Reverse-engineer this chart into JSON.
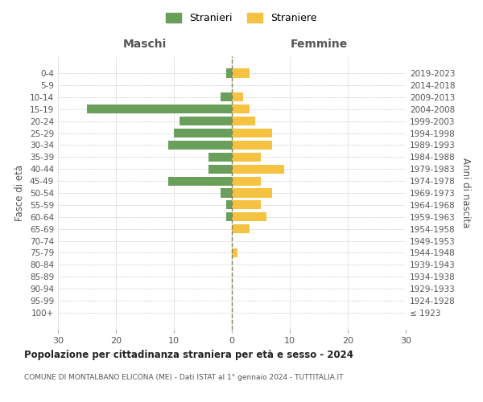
{
  "age_groups": [
    "100+",
    "95-99",
    "90-94",
    "85-89",
    "80-84",
    "75-79",
    "70-74",
    "65-69",
    "60-64",
    "55-59",
    "50-54",
    "45-49",
    "40-44",
    "35-39",
    "30-34",
    "25-29",
    "20-24",
    "15-19",
    "10-14",
    "5-9",
    "0-4"
  ],
  "birth_years": [
    "≤ 1923",
    "1924-1928",
    "1929-1933",
    "1934-1938",
    "1939-1943",
    "1944-1948",
    "1949-1953",
    "1954-1958",
    "1959-1963",
    "1964-1968",
    "1969-1973",
    "1974-1978",
    "1979-1983",
    "1984-1988",
    "1989-1993",
    "1994-1998",
    "1999-2003",
    "2004-2008",
    "2009-2013",
    "2014-2018",
    "2019-2023"
  ],
  "males": [
    0,
    0,
    0,
    0,
    0,
    0,
    0,
    0,
    1,
    1,
    2,
    11,
    4,
    4,
    11,
    10,
    9,
    25,
    2,
    0,
    1
  ],
  "females": [
    0,
    0,
    0,
    0,
    0,
    1,
    0,
    3,
    6,
    5,
    7,
    5,
    9,
    5,
    7,
    7,
    4,
    3,
    2,
    0,
    3
  ],
  "male_color": "#6a9e5b",
  "female_color": "#f5c242",
  "male_label": "Stranieri",
  "female_label": "Straniere",
  "title": "Popolazione per cittadinanza straniera per età e sesso - 2024",
  "subtitle": "COMUNE DI MONTALBANO ELICONA (ME) - Dati ISTAT al 1° gennaio 2024 - TUTTITALIA.IT",
  "xlabel_left": "Maschi",
  "xlabel_right": "Femmine",
  "ylabel_left": "Fasce di età",
  "ylabel_right": "Anni di nascita",
  "xlim": 30,
  "background_color": "#ffffff",
  "grid_color": "#cccccc",
  "dashed_line_color": "#808060"
}
